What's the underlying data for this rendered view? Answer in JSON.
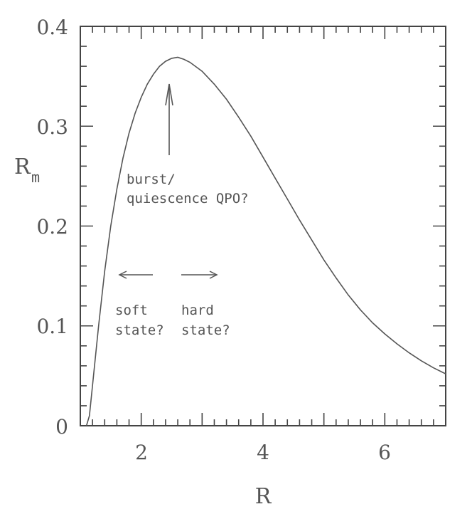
{
  "chart_data": {
    "type": "line",
    "xlabel": "R",
    "ylabel": "R",
    "ylabel_sub": "m",
    "xlim": [
      1,
      7
    ],
    "ylim": [
      0,
      0.4
    ],
    "xticks": [
      2,
      4,
      6
    ],
    "yticks": [
      0,
      0.1,
      0.2,
      0.3,
      0.4
    ],
    "ytick_labels": [
      "0",
      "0.1",
      "0.2",
      "0.3",
      "0.4"
    ],
    "xtick_labels": [
      "2",
      "4",
      "6"
    ],
    "grid": false,
    "series": [
      {
        "x": [
          1.1,
          1.15,
          1.2,
          1.3,
          1.4,
          1.5,
          1.6,
          1.7,
          1.8,
          1.9,
          2.0,
          2.1,
          2.2,
          2.3,
          2.4,
          2.5,
          2.6,
          2.7,
          2.8,
          3.0,
          3.2,
          3.4,
          3.6,
          3.8,
          4.0,
          4.2,
          4.4,
          4.6,
          4.8,
          5.0,
          5.2,
          5.4,
          5.6,
          5.8,
          6.0,
          6.2,
          6.4,
          6.6,
          6.8,
          7.0
        ],
        "y": [
          0.0,
          0.01,
          0.04,
          0.1,
          0.155,
          0.2,
          0.237,
          0.268,
          0.293,
          0.313,
          0.329,
          0.342,
          0.352,
          0.36,
          0.365,
          0.368,
          0.369,
          0.367,
          0.364,
          0.355,
          0.342,
          0.327,
          0.309,
          0.29,
          0.269,
          0.248,
          0.227,
          0.206,
          0.186,
          0.166,
          0.148,
          0.131,
          0.116,
          0.103,
          0.092,
          0.082,
          0.073,
          0.065,
          0.058,
          0.052
        ]
      }
    ],
    "annotations": {
      "burst_line1": "burst/",
      "burst_line2": "quiescence QPO?",
      "soft_line1": "soft",
      "soft_line2": "state?",
      "hard_line1": "hard",
      "hard_line2": "state?"
    }
  }
}
